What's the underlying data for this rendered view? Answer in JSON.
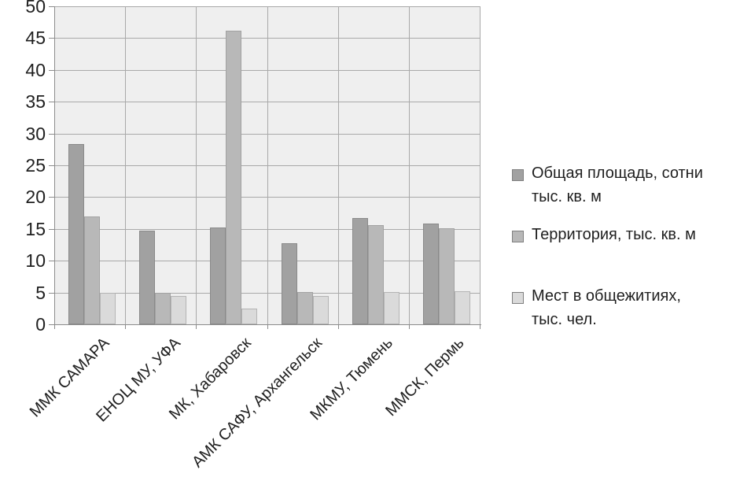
{
  "chart_data": {
    "type": "bar",
    "title": "",
    "xlabel": "",
    "ylabel": "",
    "categories": [
      "ММК САМАРА",
      "ЕНОЦ МУ, УФА",
      "МК, Хабаровск",
      "АМК САФУ, Архангельск",
      "МКМУ, Тюмень",
      "ММСК, Пермь"
    ],
    "series": [
      {
        "name": "Общая площадь, сотни тыс. кв. м",
        "legend_lines": [
          "Общая площадь, сотни",
          "тыс. кв. м"
        ],
        "values": [
          28.4,
          14.7,
          15.2,
          12.8,
          16.7,
          15.9
        ],
        "color": "#a1a1a1",
        "border_color": "#8a8a8a"
      },
      {
        "name": "Территория, тыс. кв. м",
        "legend_lines": [
          "Территория, тыс. кв. м"
        ],
        "values": [
          17,
          4.9,
          46.2,
          5.1,
          15.6,
          15.1
        ],
        "color": "#b8b8b8",
        "border_color": "#a2a2a2"
      },
      {
        "name": "Мест в общежитиях, тыс. чел.",
        "legend_lines": [
          "Мест в общежитиях,",
          "тыс. чел."
        ],
        "values": [
          5,
          4.4,
          2.5,
          4.4,
          5.1,
          5.2
        ],
        "color": "#dadada",
        "border_color": "#b4b4b4"
      }
    ],
    "ylim": [
      0,
      50
    ],
    "ytick_step": 5,
    "ytick_labels": [
      "0",
      "5",
      "10",
      "15",
      "20",
      "25",
      "30",
      "35",
      "40",
      "45",
      "50"
    ],
    "grid": true,
    "legend_position": "right",
    "colors": {
      "plot_bg": "#efefef",
      "gridline": "#a9a9a9",
      "axis": "#8c8c8c",
      "text": "#1f1f1f",
      "legend_swatch_border": "#7f7f7f"
    }
  }
}
